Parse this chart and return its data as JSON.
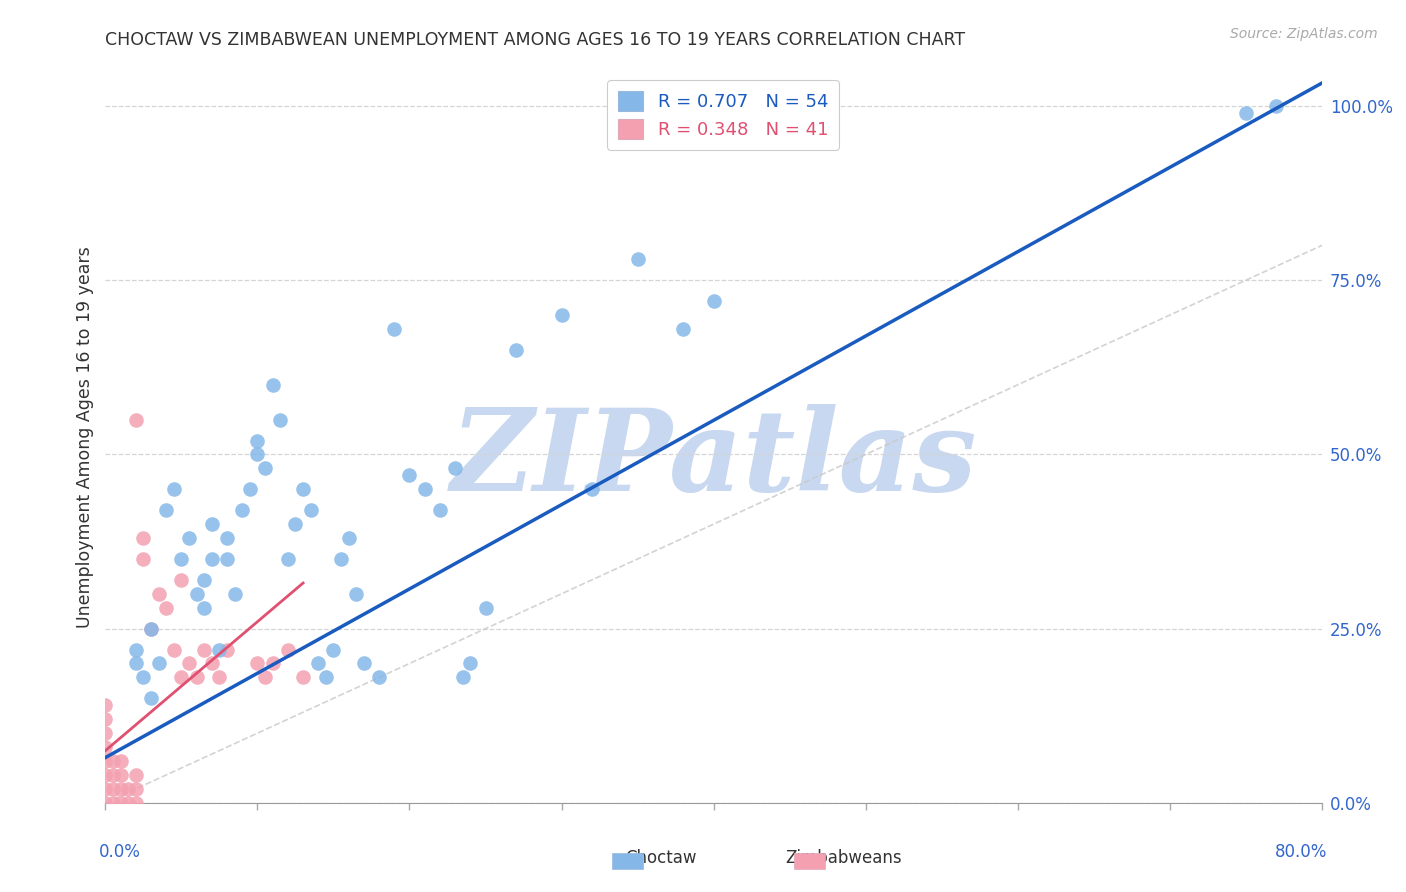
{
  "title": "CHOCTAW VS ZIMBABWEAN UNEMPLOYMENT AMONG AGES 16 TO 19 YEARS CORRELATION CHART",
  "source": "Source: ZipAtlas.com",
  "ylabel": "Unemployment Among Ages 16 to 19 years",
  "xlim": [
    0.0,
    0.8
  ],
  "ylim": [
    0.0,
    1.05
  ],
  "yticks": [
    0.0,
    0.25,
    0.5,
    0.75,
    1.0
  ],
  "ytick_labels": [
    "0.0%",
    "25.0%",
    "50.0%",
    "75.0%",
    "100.0%"
  ],
  "xtick_positions": [
    0.0,
    0.1,
    0.2,
    0.3,
    0.4,
    0.5,
    0.6,
    0.7,
    0.8
  ],
  "legend_blue_r": "R = 0.707",
  "legend_blue_n": "N = 54",
  "legend_pink_r": "R = 0.348",
  "legend_pink_n": "N = 41",
  "choctaw_color": "#85b8e8",
  "zimbabwean_color": "#f4a0b0",
  "choctaw_line_color": "#1a5bbf",
  "zimbabwean_line_color": "#e05070",
  "ref_line_color": "#c8c8c8",
  "watermark": "ZIPatlas",
  "watermark_color": "#c8d8f0",
  "choctaw_line_slope": 1.21,
  "choctaw_line_intercept": 0.065,
  "zimbabwean_line_slope": 1.85,
  "zimbabwean_line_intercept": 0.075,
  "choctaw_x": [
    0.02,
    0.02,
    0.025,
    0.03,
    0.03,
    0.035,
    0.04,
    0.045,
    0.05,
    0.055,
    0.06,
    0.065,
    0.065,
    0.07,
    0.07,
    0.075,
    0.08,
    0.08,
    0.085,
    0.09,
    0.095,
    0.1,
    0.1,
    0.105,
    0.11,
    0.115,
    0.12,
    0.125,
    0.13,
    0.135,
    0.14,
    0.145,
    0.15,
    0.155,
    0.16,
    0.165,
    0.17,
    0.18,
    0.19,
    0.2,
    0.21,
    0.22,
    0.23,
    0.235,
    0.24,
    0.25,
    0.27,
    0.3,
    0.32,
    0.35,
    0.38,
    0.4,
    0.75,
    0.77
  ],
  "choctaw_y": [
    0.2,
    0.22,
    0.18,
    0.15,
    0.25,
    0.2,
    0.42,
    0.45,
    0.35,
    0.38,
    0.3,
    0.32,
    0.28,
    0.4,
    0.35,
    0.22,
    0.35,
    0.38,
    0.3,
    0.42,
    0.45,
    0.5,
    0.52,
    0.48,
    0.6,
    0.55,
    0.35,
    0.4,
    0.45,
    0.42,
    0.2,
    0.18,
    0.22,
    0.35,
    0.38,
    0.3,
    0.2,
    0.18,
    0.68,
    0.47,
    0.45,
    0.42,
    0.48,
    0.18,
    0.2,
    0.28,
    0.65,
    0.7,
    0.45,
    0.78,
    0.68,
    0.72,
    0.99,
    1.0
  ],
  "zimbabwean_x": [
    0.0,
    0.0,
    0.0,
    0.0,
    0.0,
    0.0,
    0.0,
    0.0,
    0.005,
    0.005,
    0.005,
    0.005,
    0.01,
    0.01,
    0.01,
    0.01,
    0.015,
    0.015,
    0.02,
    0.02,
    0.02,
    0.02,
    0.025,
    0.025,
    0.03,
    0.035,
    0.04,
    0.045,
    0.05,
    0.05,
    0.055,
    0.06,
    0.065,
    0.07,
    0.075,
    0.08,
    0.1,
    0.105,
    0.11,
    0.12,
    0.13
  ],
  "zimbabwean_y": [
    0.0,
    0.02,
    0.04,
    0.06,
    0.08,
    0.1,
    0.12,
    0.14,
    0.0,
    0.02,
    0.04,
    0.06,
    0.0,
    0.02,
    0.04,
    0.06,
    0.0,
    0.02,
    0.0,
    0.02,
    0.04,
    0.55,
    0.35,
    0.38,
    0.25,
    0.3,
    0.28,
    0.22,
    0.18,
    0.32,
    0.2,
    0.18,
    0.22,
    0.2,
    0.18,
    0.22,
    0.2,
    0.18,
    0.2,
    0.22,
    0.18
  ]
}
